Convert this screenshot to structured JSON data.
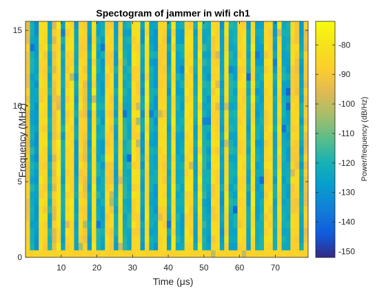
{
  "chart_data": {
    "type": "heatmap",
    "title": "Spectogram of jammer in wifi ch1",
    "xlabel": "Time (μs)",
    "ylabel": "Frequency (MHz)",
    "xlim": [
      0,
      79.2
    ],
    "ylim": [
      0,
      15.6
    ],
    "xticks": [
      10,
      20,
      30,
      40,
      50,
      60,
      70
    ],
    "yticks": [
      0,
      5,
      10,
      15
    ],
    "time_bins": 64,
    "frequency_bins": 32,
    "colorbar": {
      "label": "Power/frequency (dB/Hz)",
      "range": [
        -152,
        -72
      ],
      "ticks": [
        -80,
        -90,
        -100,
        -110,
        -120,
        -130,
        -140,
        -150
      ]
    },
    "colormap": "parula",
    "column_mean_power_dBHz": [
      -90,
      -122,
      -128,
      -84,
      -86,
      -121,
      -92,
      -82,
      -124,
      -86,
      -83,
      -125,
      -85,
      -90,
      -125,
      -82,
      -122,
      -124,
      -86,
      -87,
      -124,
      -84,
      -121,
      -122,
      -84,
      -85,
      -126,
      -82,
      -123,
      -126,
      -85,
      -86,
      -125,
      -82,
      -122,
      -124,
      -84,
      -86,
      -123,
      -82,
      -121,
      -125,
      -86,
      -85,
      -127,
      -84,
      -122,
      -123,
      -86,
      -84,
      -125,
      -82,
      -124,
      -123,
      -86,
      -85,
      -124,
      -84,
      -123,
      -124,
      -86,
      -88,
      -124,
      -90
    ]
  }
}
